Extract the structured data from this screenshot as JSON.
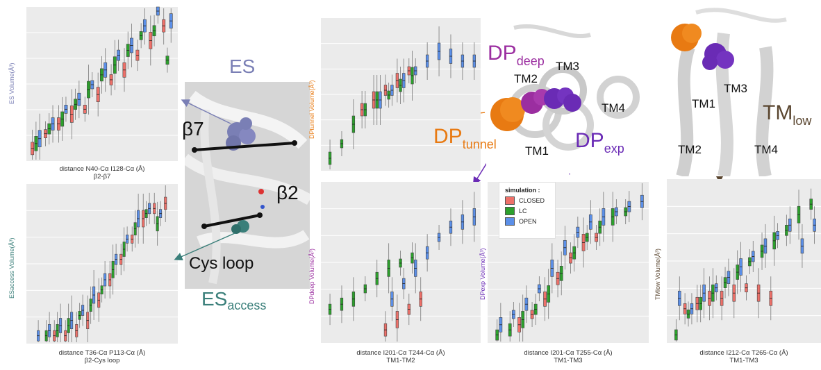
{
  "colors": {
    "closed": "#ee7069",
    "lc": "#2ca02c",
    "open": "#5b8fe8",
    "es": "#7a7fb5",
    "es_access": "#3a7f7a",
    "dp_deep": "#9b2ea0",
    "dp_tunnel": "#e87a12",
    "dp_exp": "#6a2bb5",
    "tm_low": "#5a4630"
  },
  "legend": {
    "title": "simulation :",
    "items": [
      "CLOSED",
      "LC",
      "OPEN"
    ]
  },
  "labels": {
    "es": "ES",
    "beta7": "β7",
    "beta2": "β2",
    "cys_loop": "Cys loop",
    "es_access": {
      "main": "ES",
      "sub": "access"
    },
    "dp_deep": {
      "main": "DP",
      "sub": "deep"
    },
    "dp_tunnel": {
      "main": "DP",
      "sub": "tunnel"
    },
    "dp_exp": {
      "main": "DP",
      "sub": "exp"
    },
    "tm_low": {
      "main": "TM",
      "sub": "low"
    },
    "tm_mid": [
      "TM3",
      "TM2",
      "TM4",
      "TM1"
    ],
    "tm_right": [
      "TM3",
      "TM1",
      "TM2",
      "TM4"
    ]
  },
  "chart_data": [
    {
      "type": "box",
      "xlabel": "distance N40-Cα I128-Cα (Å)",
      "xsublabel": "β2-β7",
      "ylabel": "ES Volume(Å³)",
      "series": [
        {
          "name": "CLOSED",
          "values": [
            2,
            5,
            7,
            9,
            10,
            13,
            16,
            18,
            21,
            24,
            27
          ]
        },
        {
          "name": "LC",
          "values": [
            3,
            6,
            8,
            11,
            14,
            17,
            19,
            22,
            25,
            26,
            20
          ]
        },
        {
          "name": "OPEN",
          "values": [
            4,
            7,
            10,
            12,
            15,
            18,
            21,
            23,
            27,
            30,
            28
          ]
        }
      ]
    },
    {
      "type": "box",
      "xlabel": "distance T36-Cα P113-Cα (Å)",
      "xsublabel": "β2-Cys loop",
      "ylabel": "ESaccess Volume(Å³)",
      "series": [
        {
          "name": "CLOSED",
          "values": [
            0,
            0,
            1,
            1,
            2,
            4,
            8,
            12,
            16,
            20,
            24,
            26,
            27
          ]
        },
        {
          "name": "LC",
          "values": [
            0,
            1,
            2,
            3,
            5,
            7,
            10,
            14,
            18,
            22,
            25,
            23,
            0
          ]
        },
        {
          "name": "OPEN",
          "values": [
            1,
            2,
            3,
            4,
            6,
            9,
            12,
            16,
            20,
            24,
            26,
            25,
            0
          ]
        }
      ]
    },
    {
      "type": "box",
      "xlabel": "distance I201-Cα T244-Cα (Å)",
      "xsublabel": "TM1-TM2",
      "ylabel": "DPtunnel Volume(Å³)",
      "series": [
        {
          "name": "CLOSED",
          "values": [
            0,
            0,
            0,
            12,
            14,
            16,
            18,
            20,
            0,
            0,
            0,
            0,
            0
          ]
        },
        {
          "name": "LC",
          "values": [
            2,
            5,
            9,
            12,
            14,
            15,
            17,
            19,
            0,
            0,
            0,
            0,
            0
          ]
        },
        {
          "name": "OPEN",
          "values": [
            0,
            0,
            0,
            0,
            14,
            16,
            18,
            20,
            22,
            24,
            23,
            22,
            22
          ]
        }
      ]
    },
    {
      "type": "box",
      "xlabel": "distance I201-Cα T244-Cα (Å)",
      "xsublabel": "TM1-TM2",
      "ylabel": "DPdeep Volume(Å³)",
      "series": [
        {
          "name": "CLOSED",
          "values": [
            0,
            0,
            0,
            0,
            0,
            2,
            4,
            6,
            8,
            0,
            0,
            0,
            0
          ]
        },
        {
          "name": "LC",
          "values": [
            6,
            7,
            8,
            10,
            12,
            14,
            15,
            16,
            0,
            0,
            0,
            0,
            0
          ]
        },
        {
          "name": "OPEN",
          "values": [
            0,
            0,
            0,
            0,
            0,
            8,
            11,
            14,
            17,
            20,
            22,
            23,
            24
          ]
        }
      ]
    },
    {
      "type": "box",
      "xlabel": "distance I201-Cα T255-Cα (Å)",
      "xsublabel": "TM1-TM3",
      "ylabel": "DPexp Volume(Å³)",
      "series": [
        {
          "name": "CLOSED",
          "values": [
            0,
            0,
            3,
            5,
            8,
            12,
            16,
            19,
            20,
            0,
            0,
            0
          ]
        },
        {
          "name": "LC",
          "values": [
            1,
            2,
            4,
            6,
            9,
            13,
            17,
            20,
            22,
            24,
            25,
            0
          ]
        },
        {
          "name": "OPEN",
          "values": [
            3,
            5,
            7,
            10,
            14,
            18,
            21,
            23,
            24,
            25,
            26,
            27
          ]
        }
      ]
    },
    {
      "type": "box",
      "xlabel": "distance I212-Cα T265-Cα (Å)",
      "xsublabel": "TM1-TM3",
      "ylabel": "TMlow Volume(Å³)",
      "series": [
        {
          "name": "CLOSED",
          "values": [
            0,
            6,
            7,
            8,
            8,
            9,
            10,
            9,
            8,
            0,
            0,
            0
          ]
        },
        {
          "name": "LC",
          "values": [
            1,
            5,
            7,
            9,
            11,
            13,
            15,
            17,
            19,
            21,
            24,
            26
          ]
        },
        {
          "name": "OPEN",
          "values": [
            8,
            6,
            9,
            10,
            12,
            14,
            16,
            18,
            20,
            22,
            18,
            22
          ]
        }
      ]
    }
  ]
}
